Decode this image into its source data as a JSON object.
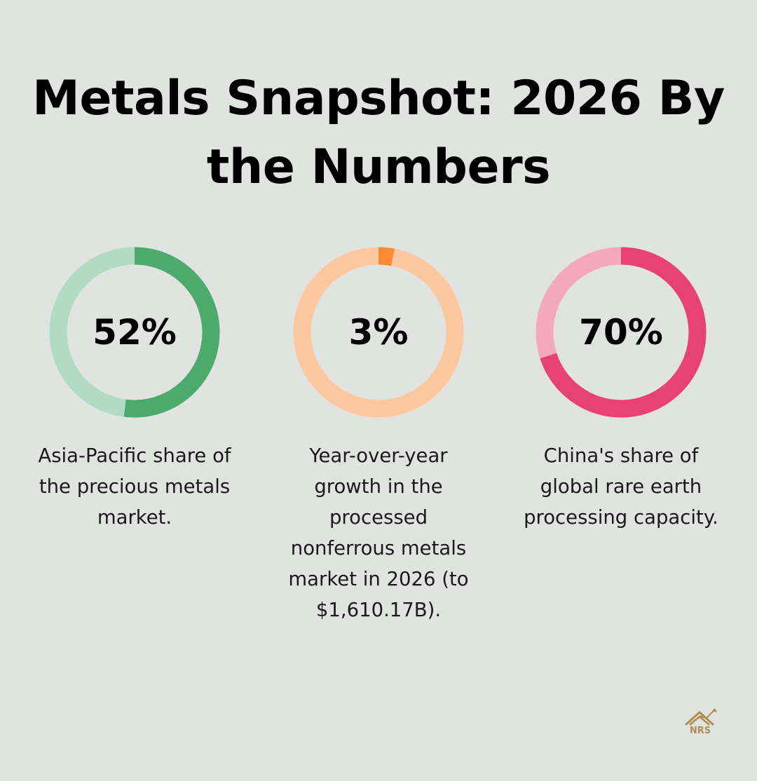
{
  "title": "Metals Snapshot: 2026 By the Numbers",
  "chart_data": [
    {
      "type": "pie",
      "donut": true,
      "value": 52,
      "label": "52%",
      "description": "Asia-Pacific share of the precious metals market.",
      "colors": {
        "value": "#4caa6c",
        "track": "#b2dcc2"
      }
    },
    {
      "type": "pie",
      "donut": true,
      "value": 3,
      "label": "3%",
      "description": "Year-over-year growth in the processed nonferrous metals market in 2026 (to $1,610.17B).",
      "colors": {
        "value": "#fb8a33",
        "track": "#fdc89f"
      }
    },
    {
      "type": "pie",
      "donut": true,
      "value": 70,
      "label": "70%",
      "description": "China's share of global rare earth processing capacity.",
      "colors": {
        "value": "#e64277",
        "track": "#f3a8c0"
      }
    }
  ],
  "logo": {
    "text": "NRS",
    "color": "#b08d4c",
    "icon": "house-chart-logo-icon"
  }
}
